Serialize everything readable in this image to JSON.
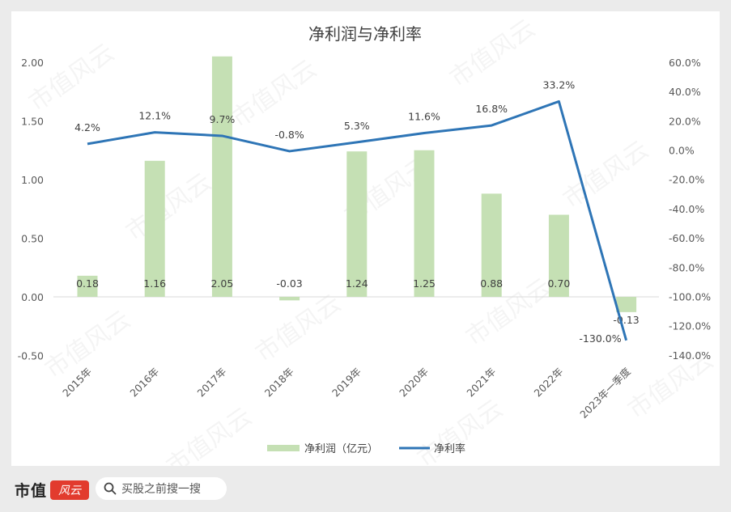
{
  "chart_data": {
    "type": "bar+line",
    "title": "净利润与净利率",
    "categories": [
      "2015年",
      "2016年",
      "2017年",
      "2018年",
      "2019年",
      "2020年",
      "2021年",
      "2022年",
      "2023年一季度"
    ],
    "series": [
      {
        "name": "净利润（亿元）",
        "type": "bar",
        "axis": "left",
        "color": "#c5e0b4",
        "values": [
          0.18,
          1.16,
          2.05,
          -0.03,
          1.24,
          1.25,
          0.88,
          0.7,
          -0.13
        ],
        "labels": [
          "0.18",
          "1.16",
          "2.05",
          "-0.03",
          "1.24",
          "1.25",
          "0.88",
          "0.70",
          "-0.13"
        ]
      },
      {
        "name": "净利率",
        "type": "line",
        "axis": "right",
        "color": "#2e75b6",
        "values": [
          4.2,
          12.1,
          9.7,
          -0.8,
          5.3,
          11.6,
          16.8,
          33.2,
          -130.0
        ],
        "labels": [
          "4.2%",
          "12.1%",
          "9.7%",
          "-0.8%",
          "5.3%",
          "11.6%",
          "16.8%",
          "33.2%",
          "-130.0%"
        ]
      }
    ],
    "y_left": {
      "ylim": [
        -0.5,
        2.0
      ],
      "ticks": [
        -0.5,
        0,
        0.5,
        1.0,
        1.5,
        2.0
      ],
      "tick_labels": [
        "-0.50",
        "0.00",
        "0.50",
        "1.00",
        "1.50",
        "2.00"
      ]
    },
    "y_right": {
      "ylim": [
        -140,
        60
      ],
      "ticks": [
        -140,
        -120,
        -100,
        -80,
        -60,
        -40,
        -20,
        0,
        20,
        40,
        60
      ],
      "tick_labels": [
        "-140.0%",
        "-120.0%",
        "-100.0%",
        "-80.0%",
        "-60.0%",
        "-40.0%",
        "-20.0%",
        "0.0%",
        "20.0%",
        "40.0%",
        "60.0%"
      ]
    },
    "legend_position": "bottom",
    "grid": false,
    "watermark": "市值风云"
  },
  "footer": {
    "logo_text": "市值",
    "logo_badge": "风云",
    "search_icon": "search-icon",
    "search_text": "买股之前搜一搜"
  }
}
